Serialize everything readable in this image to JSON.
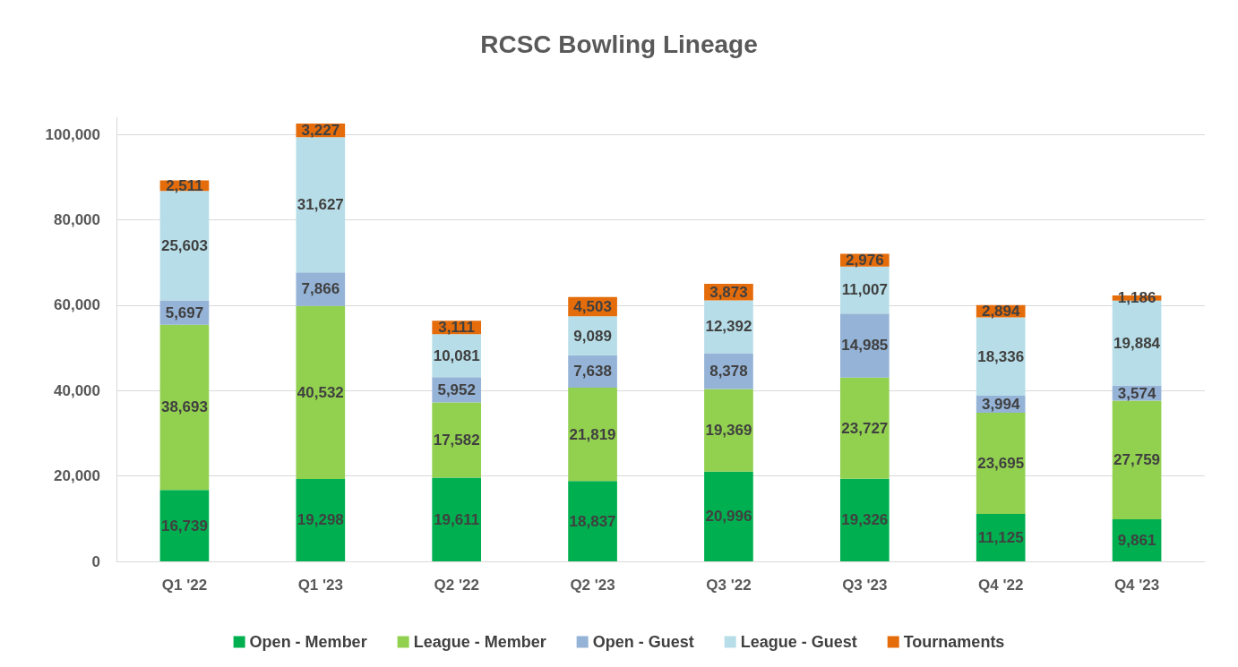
{
  "chart_data": {
    "type": "bar",
    "title": "RCSC Bowling Lineage",
    "stacked": true,
    "grid": "y",
    "legend": "bottom",
    "categories": [
      "Q1 '22",
      "Q1 '23",
      "Q2 '22",
      "Q2 '23",
      "Q3 '22",
      "Q3 '23",
      "Q4 '22",
      "Q4 '23"
    ],
    "ylim": [
      0,
      104000
    ],
    "yticks": [
      0,
      {
        "value": 20000,
        "label": "20,000"
      },
      {
        "value": 40000,
        "label": "40,000"
      },
      {
        "value": 60000,
        "label": "60,000"
      },
      {
        "value": 80000,
        "label": "80,000"
      },
      {
        "value": 100000,
        "label": "100,000"
      }
    ],
    "series": [
      {
        "name": "Open - Member",
        "color": "#00b050",
        "values": [
          16739,
          19298,
          19611,
          18837,
          20996,
          19326,
          11125,
          9861
        ],
        "value_labels": [
          "16,739",
          "19,298",
          "19,611",
          "18,837",
          "20,996",
          "19,326",
          "11,125",
          "9,861"
        ]
      },
      {
        "name": "League - Member",
        "color": "#92d050",
        "values": [
          38693,
          40532,
          17582,
          21819,
          19369,
          23727,
          23695,
          27759
        ],
        "value_labels": [
          "38,693",
          "40,532",
          "17,582",
          "21,819",
          "19,369",
          "23,727",
          "23,695",
          "27,759"
        ]
      },
      {
        "name": "Open - Guest",
        "color": "#95b3d7",
        "values": [
          5697,
          7866,
          5952,
          7638,
          8378,
          14985,
          3994,
          3574
        ],
        "value_labels": [
          "5,697",
          "7,866",
          "5,952",
          "7,638",
          "8,378",
          "14,985",
          "3,994",
          "3,574"
        ]
      },
      {
        "name": "League - Guest",
        "color": "#b7dee8",
        "values": [
          25603,
          31627,
          10081,
          9089,
          12392,
          11007,
          18336,
          19884
        ],
        "value_labels": [
          "25,603",
          "31,627",
          "10,081",
          "9,089",
          "12,392",
          "11,007",
          "18,336",
          "19,884"
        ]
      },
      {
        "name": "Tournaments",
        "color": "#e46c0a",
        "values": [
          2511,
          3227,
          3111,
          4503,
          3873,
          2976,
          2894,
          1186
        ],
        "value_labels": [
          "2,511",
          "3,227",
          "3,111",
          "4,503",
          "3,873",
          "2,976",
          "2,894",
          "1,186"
        ]
      }
    ]
  }
}
